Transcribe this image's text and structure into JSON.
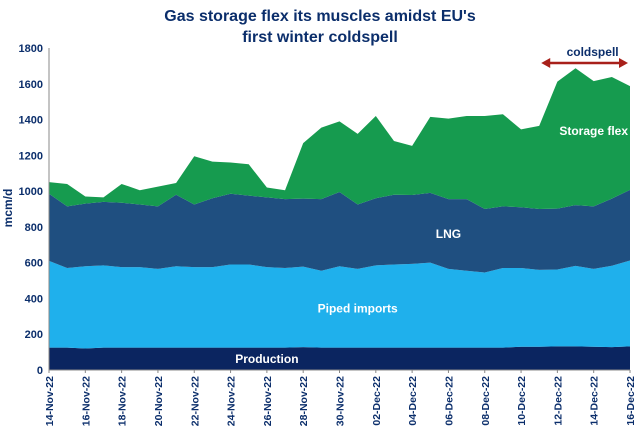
{
  "chart_data": {
    "type": "area",
    "stacked": true,
    "title_line1": "Gas storage flex its muscles amidst EU's",
    "title_line2": "first winter coldspell",
    "ylabel": "mcm/d",
    "xlabel": "",
    "ylim": [
      0,
      1800
    ],
    "yticks": [
      0,
      200,
      400,
      600,
      800,
      1000,
      1200,
      1400,
      1600,
      1800
    ],
    "grid": false,
    "legend": "in-chart labels",
    "x": [
      "14-Nov-22",
      "15-Nov-22",
      "16-Nov-22",
      "17-Nov-22",
      "18-Nov-22",
      "19-Nov-22",
      "20-Nov-22",
      "21-Nov-22",
      "22-Nov-22",
      "23-Nov-22",
      "24-Nov-22",
      "25-Nov-22",
      "26-Nov-22",
      "27-Nov-22",
      "28-Nov-22",
      "29-Nov-22",
      "30-Nov-22",
      "01-Dec-22",
      "02-Dec-22",
      "03-Dec-22",
      "04-Dec-22",
      "05-Dec-22",
      "06-Dec-22",
      "07-Dec-22",
      "08-Dec-22",
      "09-Dec-22",
      "10-Dec-22",
      "11-Dec-22",
      "12-Dec-22",
      "13-Dec-22",
      "14-Dec-22",
      "15-Dec-22",
      "16-Dec-22"
    ],
    "xtick_labels": [
      "14-Nov-22",
      "16-Nov-22",
      "18-Nov-22",
      "20-Nov-22",
      "22-Nov-22",
      "24-Nov-22",
      "26-Nov-22",
      "28-Nov-22",
      "30-Nov-22",
      "02-Dec-22",
      "04-Dec-22",
      "06-Dec-22",
      "08-Dec-22",
      "10-Dec-22",
      "12-Dec-22",
      "14-Dec-22",
      "16-Dec-22"
    ],
    "series": [
      {
        "name": "Production",
        "color": "#0b2560",
        "values": [
          125,
          125,
          120,
          125,
          125,
          125,
          125,
          125,
          125,
          125,
          125,
          125,
          125,
          125,
          128,
          125,
          125,
          125,
          125,
          125,
          125,
          125,
          125,
          125,
          125,
          125,
          130,
          130,
          132,
          132,
          130,
          128,
          132
        ]
      },
      {
        "name": "Piped imports",
        "color": "#1fb0ec",
        "values": [
          485,
          445,
          460,
          460,
          450,
          450,
          440,
          455,
          450,
          450,
          465,
          465,
          450,
          445,
          450,
          430,
          455,
          440,
          460,
          465,
          468,
          475,
          440,
          430,
          420,
          445,
          440,
          430,
          430,
          450,
          435,
          455,
          480
        ]
      },
      {
        "name": "LNG",
        "color": "#1f4f80",
        "values": [
          375,
          345,
          350,
          355,
          360,
          350,
          350,
          400,
          350,
          385,
          395,
          385,
          390,
          385,
          380,
          400,
          415,
          360,
          375,
          390,
          385,
          390,
          390,
          400,
          355,
          345,
          340,
          340,
          340,
          340,
          350,
          375,
          395
        ]
      },
      {
        "name": "Storage flex",
        "color": "#169b4f",
        "values": [
          65,
          125,
          40,
          25,
          105,
          80,
          110,
          65,
          270,
          205,
          175,
          175,
          55,
          50,
          310,
          400,
          395,
          395,
          460,
          300,
          275,
          425,
          450,
          465,
          520,
          515,
          435,
          465,
          710,
          765,
          700,
          680,
          580
        ]
      }
    ],
    "annotations": {
      "coldspell_label": "coldspell",
      "coldspell_range": [
        "11-Dec-22",
        "16-Dec-22"
      ]
    }
  }
}
